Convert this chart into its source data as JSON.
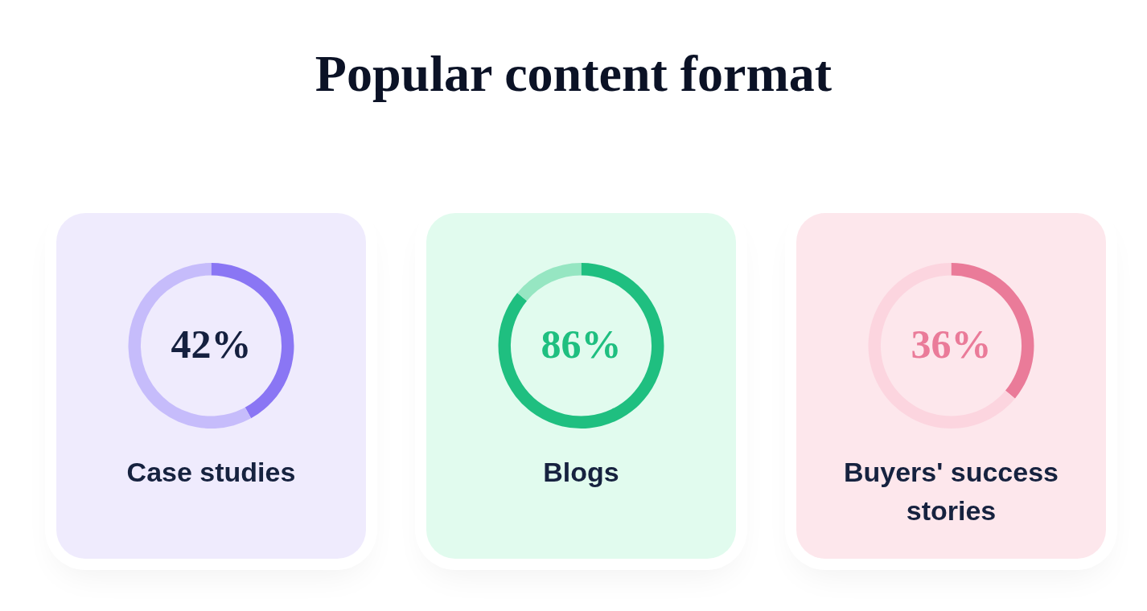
{
  "chart_data": [
    {
      "type": "other",
      "title": "Popular content format"
    },
    {
      "type": "donut",
      "title": "Case studies",
      "categories": [
        null,
        null
      ],
      "values": [
        42,
        58
      ],
      "colors": [
        "#8a76f4",
        "#c6bcfb"
      ],
      "value_labels": [
        "42%",
        null
      ]
    },
    {
      "type": "donut",
      "title": "Blogs",
      "categories": [
        null,
        null
      ],
      "values": [
        86,
        14
      ],
      "colors": [
        "#1fbf80",
        "#96e6c2"
      ],
      "value_labels": [
        "86%",
        null
      ]
    },
    {
      "type": "donut",
      "title": "Buyers' success stories",
      "categories": [
        null,
        null
      ],
      "values": [
        36,
        64
      ],
      "colors": [
        "#ea7b99",
        "#fcd5df"
      ],
      "value_labels": [
        "36%",
        null
      ]
    }
  ]
}
